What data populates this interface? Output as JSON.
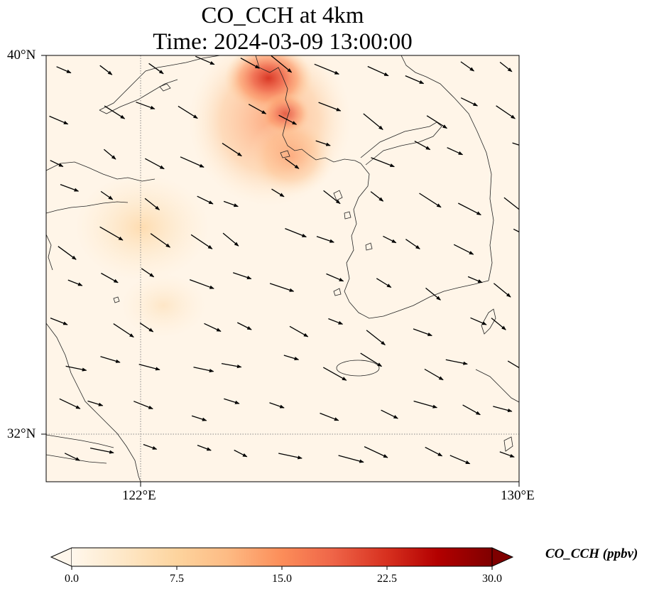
{
  "title": {
    "line1": "CO_CCH at 4km",
    "line2": "Time: 2024-03-09 13:00:00"
  },
  "map": {
    "lat_labels": [
      "40°N",
      "32°N"
    ],
    "lon_labels": [
      "122°E",
      "130°E"
    ],
    "extent": {
      "lon_min": 120,
      "lon_max": 130,
      "lat_min": 31,
      "lat_max": 40
    },
    "gridlines": {
      "lon": 122,
      "lat": 32
    }
  },
  "colorbar": {
    "label": "CO_CCH (ppbv)",
    "colormap": "OrRd",
    "ticks": [
      "0.0",
      "7.5",
      "15.0",
      "22.5",
      "30.0"
    ],
    "min": 0,
    "max": 30,
    "extend": "both",
    "colors": [
      "#fff7ec",
      "#fee8c8",
      "#fdd49e",
      "#fdbb84",
      "#fc8d59",
      "#ef6548",
      "#d7301f",
      "#b30000",
      "#7f0000"
    ]
  }
}
